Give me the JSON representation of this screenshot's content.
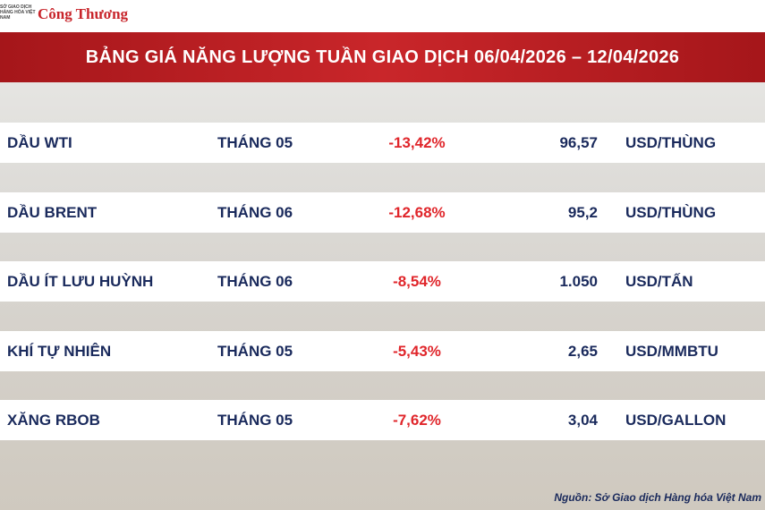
{
  "header": {
    "logo_org": "SỞ GIAO DỊCH HÀNG HÓA VIỆT NAM",
    "logo_brand": "Công Thương",
    "title": "BẢNG GIÁ NĂNG LƯỢNG TUẦN GIAO DỊCH 06/04/2026 – 12/04/2026"
  },
  "table": {
    "rows": [
      [
        "DẦU WTI",
        "THÁNG 05",
        "-13,42%",
        "96,57",
        "USD/THÙNG"
      ],
      [
        "DẦU BRENT",
        "THÁNG 06",
        "-12,68%",
        "95,2",
        "USD/THÙNG"
      ],
      [
        "DẦU ÍT LƯU HUỲNH",
        "THÁNG 06",
        "-8,54%",
        "1.050",
        "USD/TẤN"
      ],
      [
        "KHÍ TỰ NHIÊN",
        "THÁNG 05",
        "-5,43%",
        "2,65",
        "USD/MMBTU"
      ],
      [
        "XĂNG RBOB",
        "THÁNG 05",
        "-7,62%",
        "3,04",
        "USD/GALLON"
      ]
    ]
  },
  "footer": {
    "source": "Nguồn: Sở Giao dịch Hàng hóa Việt Nam"
  }
}
